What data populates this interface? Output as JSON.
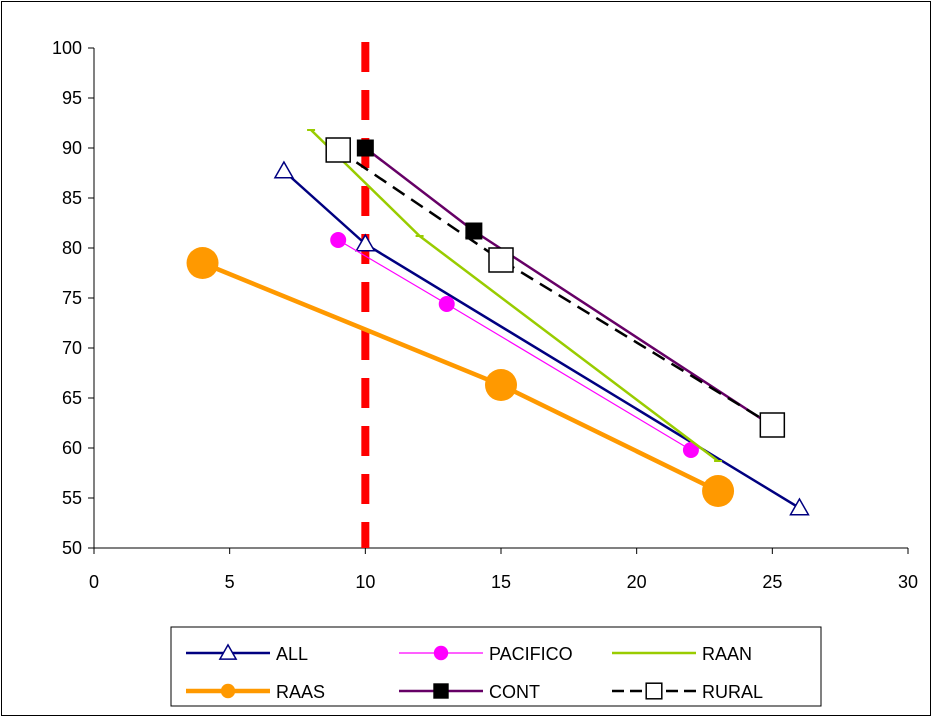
{
  "chart_data": {
    "type": "line",
    "title": "",
    "xlabel": "",
    "ylabel": "",
    "xlim": [
      0,
      30
    ],
    "ylim": [
      50,
      100
    ],
    "x_ticks": [
      "0",
      "5",
      "10",
      "15",
      "20",
      "25",
      "30"
    ],
    "y_ticks": [
      "50",
      "55",
      "60",
      "65",
      "70",
      "75",
      "80",
      "85",
      "90",
      "95",
      "100"
    ],
    "grid": false,
    "legend_position": "bottom",
    "reference_line": {
      "x": 10,
      "color": "#ff0000",
      "style": "dashed"
    },
    "series": [
      {
        "name": "ALL",
        "color": "#000080",
        "marker": "triangle-open",
        "points": [
          [
            7,
            87.7
          ],
          [
            10,
            80.4
          ],
          [
            26,
            54.0
          ]
        ]
      },
      {
        "name": "PACIFICO",
        "color": "#ff00ff",
        "marker": "circle-filled",
        "points": [
          [
            9,
            80.8
          ],
          [
            13,
            74.4
          ],
          [
            22,
            59.8
          ]
        ]
      },
      {
        "name": "RAAN",
        "color": "#99cc00",
        "marker": "dash",
        "points": [
          [
            8,
            91.8
          ],
          [
            12,
            81.2
          ],
          [
            23,
            58.7
          ]
        ]
      },
      {
        "name": "RAAS",
        "color": "#ff9900",
        "marker": "circle-large",
        "points": [
          [
            4,
            78.5
          ],
          [
            15,
            66.3
          ],
          [
            23,
            55.7
          ]
        ]
      },
      {
        "name": "CONT",
        "color": "#660066",
        "marker": "square-filled",
        "points": [
          [
            10,
            90.0
          ],
          [
            14,
            81.7
          ],
          [
            25,
            62.2
          ]
        ]
      },
      {
        "name": "RURAL",
        "color": "#000000",
        "marker": "square-open",
        "points": [
          [
            9,
            89.8
          ],
          [
            15,
            78.8
          ],
          [
            25,
            62.3
          ]
        ]
      }
    ]
  }
}
